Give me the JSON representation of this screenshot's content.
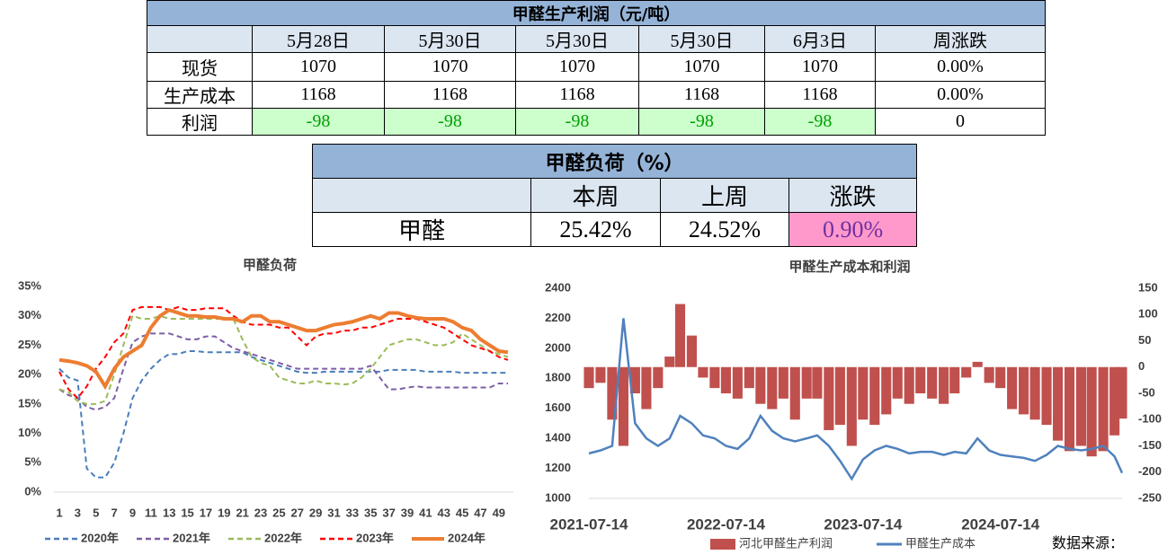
{
  "tables": [
    {
      "title": "甲醛生产利润（元/吨）",
      "header": [
        "5月28日",
        "5月30日",
        "5月30日",
        "5月30日",
        "6月3日",
        "周涨跌"
      ],
      "rows": [
        [
          "现货",
          "1070",
          "1070",
          "1070",
          "1070",
          "1070",
          "0.00%"
        ],
        [
          "生产成本",
          "1168",
          "1168",
          "1168",
          "1168",
          "1168",
          "0.00%"
        ],
        [
          "利润",
          "-98",
          "-98",
          "-98",
          "-98",
          "-98",
          "0"
        ]
      ]
    },
    {
      "title": "甲醛负荷（%）",
      "header": [
        "本周",
        "上周",
        "涨跌"
      ],
      "rows": [
        [
          "甲醛",
          "25.42%",
          "24.52%",
          "0.90%"
        ]
      ]
    }
  ],
  "chart_data": [
    {
      "type": "line",
      "title": "甲醛负荷",
      "x": [
        1,
        2,
        3,
        4,
        5,
        6,
        7,
        8,
        9,
        10,
        11,
        12,
        13,
        14,
        15,
        16,
        17,
        18,
        19,
        20,
        21,
        22,
        23,
        24,
        25,
        26,
        27,
        28,
        29,
        30,
        31,
        32,
        33,
        34,
        35,
        36,
        37,
        38,
        39,
        40,
        41,
        42,
        43,
        44,
        45,
        46,
        47,
        48,
        49,
        50
      ],
      "xlim": [
        1,
        50
      ],
      "xticks": [
        1,
        3,
        5,
        7,
        9,
        11,
        13,
        15,
        17,
        19,
        21,
        23,
        25,
        27,
        29,
        31,
        33,
        35,
        37,
        39,
        41,
        43,
        45,
        47,
        49
      ],
      "ylim": [
        0,
        35
      ],
      "yticks": [
        {
          "value": 0,
          "label": "0%"
        },
        {
          "value": 5,
          "label": "5%"
        },
        {
          "value": 10,
          "label": "10%"
        },
        {
          "value": 15,
          "label": "15%"
        },
        {
          "value": 20,
          "label": "20%"
        },
        {
          "value": 25,
          "label": "25%"
        },
        {
          "value": 30,
          "label": "30%"
        },
        {
          "value": 35,
          "label": "35%"
        }
      ],
      "legend": "bottom",
      "series": [
        {
          "name": "2020年",
          "color": "#4a7ebb",
          "dashed": true,
          "values": [
            21,
            19.5,
            19,
            4,
            2.5,
            2.5,
            5,
            10,
            16,
            19,
            21,
            22.5,
            23.5,
            23.5,
            24,
            24,
            23.8,
            23.8,
            23.8,
            23.8,
            23.8,
            23,
            22.5,
            22,
            21.5,
            21,
            20.5,
            20.3,
            20.3,
            20.5,
            20.5,
            20.5,
            20.5,
            20.5,
            20.5,
            20.5,
            20.8,
            20.8,
            20.8,
            20.8,
            20.5,
            20.5,
            20.5,
            20.5,
            20.3,
            20.3,
            20.3,
            20.3,
            20.3,
            20.3
          ]
        },
        {
          "name": "2021年",
          "color": "#7e5ea8",
          "dashed": true,
          "values": [
            17.5,
            16.5,
            16,
            14.5,
            14,
            14.5,
            16,
            21,
            25.5,
            26.5,
            27,
            27,
            27,
            26.5,
            26,
            26,
            26.5,
            26.5,
            25.5,
            24.5,
            24,
            23.5,
            23,
            22.5,
            22,
            21.5,
            21,
            21,
            21,
            21,
            21,
            21,
            21,
            21,
            21.5,
            19.5,
            17.5,
            17.5,
            17.8,
            18,
            17.8,
            17.8,
            17.8,
            17.8,
            17.8,
            17.8,
            17.8,
            17.8,
            18.5,
            18.5
          ]
        },
        {
          "name": "2022年",
          "color": "#9bbb59",
          "dashed": true,
          "values": [
            17.5,
            17,
            15.5,
            15,
            15,
            15.5,
            20,
            25,
            30,
            29.5,
            29.5,
            30,
            29.5,
            29.5,
            29.5,
            29.5,
            29.5,
            29.5,
            29.5,
            29.5,
            26,
            23,
            22,
            21.5,
            19.5,
            19,
            18.5,
            18.5,
            19,
            18.5,
            18.5,
            18.3,
            18.5,
            19.5,
            21,
            23,
            25,
            25.5,
            26,
            26,
            25.5,
            25,
            25,
            25.5,
            27,
            26,
            25,
            24,
            23.5,
            23
          ]
        },
        {
          "name": "2023年",
          "color": "#ff0000",
          "dashed": true,
          "values": [
            20.5,
            17.5,
            16,
            18,
            21,
            23,
            25.5,
            27,
            31,
            31.5,
            31.5,
            31.5,
            31,
            31.5,
            31,
            31,
            31.3,
            31.3,
            31.3,
            30,
            29,
            28.5,
            28.5,
            28.5,
            28,
            28,
            26.5,
            25,
            26.5,
            27,
            27,
            27.5,
            27.5,
            28,
            28,
            28.5,
            29,
            29.5,
            29.5,
            29.5,
            29,
            28.5,
            28,
            27,
            26,
            25,
            24.5,
            24,
            23,
            22.5
          ]
        },
        {
          "name": "2024年",
          "color": "#ed7d31",
          "dashed": false,
          "values": [
            22.5,
            22.3,
            22,
            21.5,
            20.5,
            18,
            21,
            23,
            24,
            25,
            28,
            30,
            31,
            30.5,
            30,
            30,
            29.8,
            29.8,
            29.5,
            29.5,
            29,
            30,
            30,
            29,
            29,
            28.5,
            28,
            27.5,
            27.5,
            28,
            28.5,
            28.7,
            29,
            29.5,
            30,
            29.5,
            30.5,
            30.5,
            30,
            29.7,
            29.5,
            29.5,
            29.5,
            29,
            28,
            27.5,
            26,
            25,
            24,
            23.8
          ]
        }
      ]
    },
    {
      "type": "combo",
      "title": "甲醛生产成本和利润",
      "x": [
        "2021-07-14",
        "2021-08-14",
        "2021-09-14",
        "2021-10-14",
        "2021-11-14",
        "2021-12-14",
        "2022-01-14",
        "2022-02-14",
        "2022-03-14",
        "2022-04-14",
        "2022-05-14",
        "2022-06-14",
        "2022-07-14",
        "2022-08-14",
        "2022-09-14",
        "2022-10-14",
        "2022-11-14",
        "2022-12-14",
        "2023-01-14",
        "2023-02-14",
        "2023-03-14",
        "2023-04-14",
        "2023-05-14",
        "2023-06-14",
        "2023-07-14",
        "2023-08-14",
        "2023-09-14",
        "2023-10-14",
        "2023-11-14",
        "2023-12-14",
        "2024-01-14",
        "2024-02-14",
        "2024-03-14",
        "2024-04-14",
        "2024-05-14",
        "2024-06-14",
        "2024-07-14",
        "2024-08-14",
        "2024-09-14",
        "2024-10-14",
        "2024-11-14",
        "2024-12-14",
        "2025-01-14",
        "2025-02-14",
        "2025-03-14",
        "2025-04-14",
        "2025-05-14",
        "2025-06-03"
      ],
      "xlim": [
        "2021-07-14",
        "2025-06-03"
      ],
      "xticks": [
        "2021-07-14",
        "2022-07-14",
        "2023-07-14",
        "2024-07-14"
      ],
      "ylim": [
        1000,
        2400
      ],
      "yticks": [
        1000,
        1200,
        1400,
        1600,
        1800,
        2000,
        2200,
        2400
      ],
      "y2lim": [
        -250,
        150
      ],
      "y2ticks": [
        -250,
        -200,
        -150,
        -100,
        -50,
        0,
        50,
        100,
        150
      ],
      "legend": "bottom",
      "series": [
        {
          "name": "河北甲醛生产利润",
          "mark": "bar",
          "axis": "y2",
          "color": "#c0504d",
          "values": [
            -40,
            -30,
            -100,
            -150,
            -50,
            -80,
            -40,
            20,
            120,
            60,
            -20,
            -40,
            -50,
            -60,
            -40,
            -70,
            -80,
            -60,
            -100,
            -60,
            -60,
            -120,
            -110,
            -150,
            -100,
            -110,
            -90,
            -60,
            -70,
            -50,
            -60,
            -70,
            -50,
            -20,
            10,
            -30,
            -40,
            -80,
            -90,
            -100,
            -110,
            -140,
            -160,
            -150,
            -170,
            -160,
            -130,
            -98
          ]
        },
        {
          "name": "甲醛生产成本",
          "mark": "line",
          "color": "#4f81bd",
          "values": [
            1300,
            1320,
            1350,
            2200,
            1500,
            1400,
            1350,
            1400,
            1550,
            1500,
            1420,
            1400,
            1350,
            1330,
            1400,
            1550,
            1450,
            1400,
            1380,
            1400,
            1420,
            1350,
            1250,
            1130,
            1260,
            1320,
            1350,
            1330,
            1300,
            1310,
            1310,
            1290,
            1310,
            1300,
            1400,
            1320,
            1290,
            1280,
            1270,
            1250,
            1290,
            1350,
            1330,
            1320,
            1330,
            1350,
            1280,
            1170
          ]
        }
      ]
    }
  ],
  "source": "数据来源："
}
